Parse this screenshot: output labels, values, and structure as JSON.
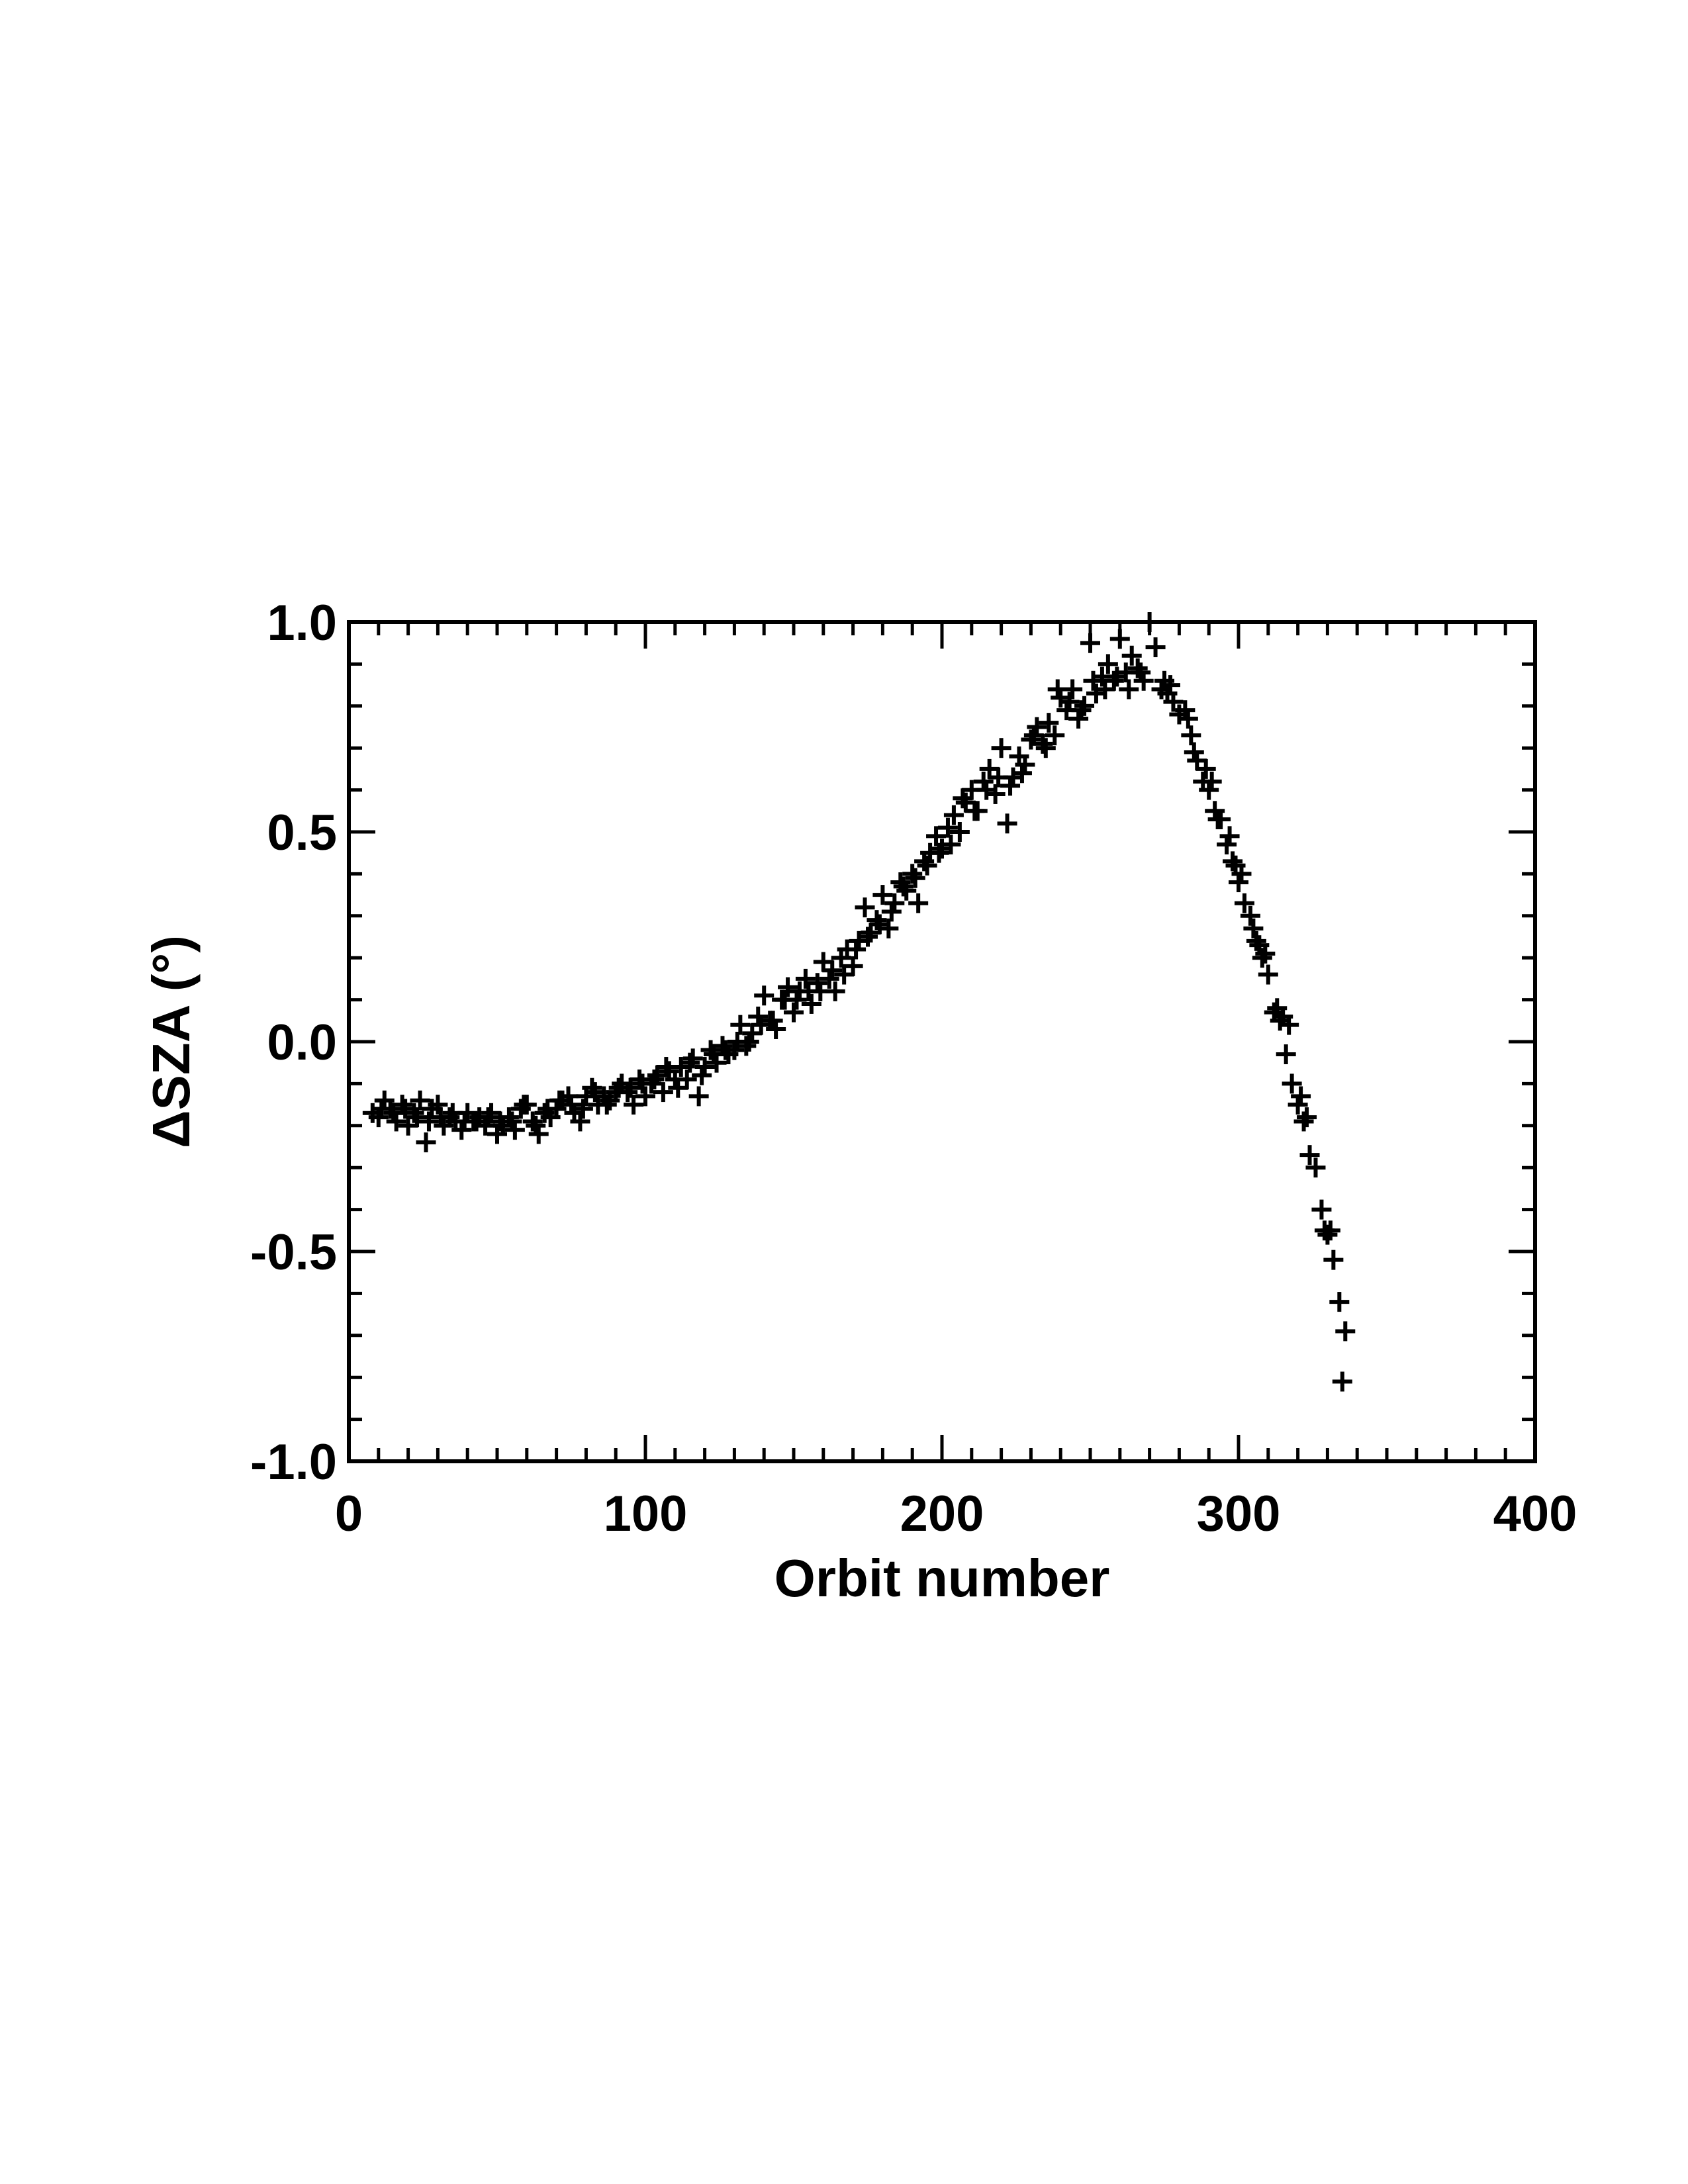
{
  "chart_data": {
    "type": "scatter",
    "marker": "plus",
    "color": "#000000",
    "xlabel": "Orbit number",
    "ylabel": "ΔSZA (°)",
    "xlim": [
      0,
      400
    ],
    "ylim": [
      -1.0,
      1.0
    ],
    "xticks": [
      0,
      100,
      200,
      300,
      400
    ],
    "xtick_labels": [
      "0",
      "100",
      "200",
      "300",
      "400"
    ],
    "xminor_step": 10,
    "yticks": [
      -1.0,
      -0.5,
      0.0,
      0.5,
      1.0
    ],
    "ytick_labels": [
      "-1.0",
      "-0.5",
      "0.0",
      "0.5",
      "1.0"
    ],
    "yminor_step": 0.1,
    "grid": false,
    "series": [
      {
        "points": [
          [
            8,
            -0.17
          ],
          [
            10,
            -0.18
          ],
          [
            12,
            -0.14
          ],
          [
            14,
            -0.16
          ],
          [
            16,
            -0.19
          ],
          [
            18,
            -0.15
          ],
          [
            20,
            -0.2
          ],
          [
            22,
            -0.17
          ],
          [
            24,
            -0.14
          ],
          [
            26,
            -0.24
          ],
          [
            28,
            -0.16
          ],
          [
            30,
            -0.15
          ],
          [
            32,
            -0.2
          ],
          [
            34,
            -0.18
          ],
          [
            36,
            -0.19
          ],
          [
            38,
            -0.21
          ],
          [
            40,
            -0.17
          ],
          [
            42,
            -0.19
          ],
          [
            44,
            -0.18
          ],
          [
            46,
            -0.2
          ],
          [
            48,
            -0.17
          ],
          [
            50,
            -0.22
          ],
          [
            52,
            -0.2
          ],
          [
            54,
            -0.18
          ],
          [
            56,
            -0.21
          ],
          [
            58,
            -0.16
          ],
          [
            60,
            -0.15
          ],
          [
            62,
            -0.19
          ],
          [
            64,
            -0.22
          ],
          [
            66,
            -0.17
          ],
          [
            68,
            -0.18
          ],
          [
            70,
            -0.16
          ],
          [
            72,
            -0.14
          ],
          [
            74,
            -0.13
          ],
          [
            76,
            -0.17
          ],
          [
            78,
            -0.19
          ],
          [
            80,
            -0.13
          ],
          [
            82,
            -0.11
          ],
          [
            84,
            -0.15
          ],
          [
            86,
            -0.13
          ],
          [
            88,
            -0.14
          ],
          [
            90,
            -0.12
          ],
          [
            92,
            -0.1
          ],
          [
            94,
            -0.12
          ],
          [
            96,
            -0.15
          ],
          [
            98,
            -0.09
          ],
          [
            100,
            -0.13
          ],
          [
            102,
            -0.1
          ],
          [
            104,
            -0.08
          ],
          [
            106,
            -0.12
          ],
          [
            108,
            -0.07
          ],
          [
            110,
            -0.09
          ],
          [
            112,
            -0.06
          ],
          [
            114,
            -0.09
          ],
          [
            116,
            -0.04
          ],
          [
            118,
            -0.13
          ],
          [
            120,
            -0.06
          ],
          [
            122,
            -0.02
          ],
          [
            124,
            -0.05
          ],
          [
            126,
            -0.01
          ],
          [
            128,
            -0.03
          ],
          [
            130,
            -0.02
          ],
          [
            132,
            0.04
          ],
          [
            134,
            -0.01
          ],
          [
            136,
            0.02
          ],
          [
            138,
            0.06
          ],
          [
            140,
            0.11
          ],
          [
            142,
            0.05
          ],
          [
            144,
            0.03
          ],
          [
            146,
            0.1
          ],
          [
            148,
            0.13
          ],
          [
            150,
            0.07
          ],
          [
            152,
            0.12
          ],
          [
            154,
            0.15
          ],
          [
            156,
            0.09
          ],
          [
            158,
            0.14
          ],
          [
            160,
            0.19
          ],
          [
            162,
            0.15
          ],
          [
            164,
            0.12
          ],
          [
            166,
            0.2
          ],
          [
            168,
            0.22
          ],
          [
            170,
            0.18
          ],
          [
            172,
            0.24
          ],
          [
            174,
            0.32
          ],
          [
            176,
            0.26
          ],
          [
            178,
            0.29
          ],
          [
            180,
            0.35
          ],
          [
            182,
            0.27
          ],
          [
            184,
            0.33
          ],
          [
            186,
            0.38
          ],
          [
            188,
            0.36
          ],
          [
            190,
            0.4
          ],
          [
            192,
            0.33
          ],
          [
            194,
            0.43
          ],
          [
            196,
            0.45
          ],
          [
            198,
            0.49
          ],
          [
            200,
            0.46
          ],
          [
            202,
            0.51
          ],
          [
            204,
            0.54
          ],
          [
            206,
            0.5
          ],
          [
            208,
            0.57
          ],
          [
            210,
            0.6
          ],
          [
            212,
            0.55
          ],
          [
            214,
            0.62
          ],
          [
            216,
            0.65
          ],
          [
            218,
            0.59
          ],
          [
            220,
            0.7
          ],
          [
            222,
            0.52
          ],
          [
            224,
            0.63
          ],
          [
            226,
            0.68
          ],
          [
            228,
            0.66
          ],
          [
            230,
            0.72
          ],
          [
            232,
            0.75
          ],
          [
            234,
            0.71
          ],
          [
            236,
            0.76
          ],
          [
            238,
            0.73
          ],
          [
            240,
            0.82
          ],
          [
            242,
            0.79
          ],
          [
            244,
            0.84
          ],
          [
            246,
            0.77
          ],
          [
            248,
            0.8
          ],
          [
            250,
            0.95
          ],
          [
            252,
            0.83
          ],
          [
            254,
            0.87
          ],
          [
            256,
            0.9
          ],
          [
            258,
            0.86
          ],
          [
            260,
            0.96
          ],
          [
            262,
            0.88
          ],
          [
            264,
            0.92
          ],
          [
            266,
            0.89
          ],
          [
            268,
            0.86
          ],
          [
            270,
            1.0
          ],
          [
            272,
            0.94
          ],
          [
            274,
            0.84
          ],
          [
            276,
            0.83
          ],
          [
            278,
            0.81
          ],
          [
            280,
            0.78
          ],
          [
            282,
            0.79
          ],
          [
            284,
            0.73
          ],
          [
            286,
            0.67
          ],
          [
            288,
            0.62
          ],
          [
            290,
            0.6
          ],
          [
            292,
            0.55
          ],
          [
            294,
            0.53
          ],
          [
            296,
            0.47
          ],
          [
            298,
            0.43
          ],
          [
            300,
            0.38
          ],
          [
            302,
            0.33
          ],
          [
            304,
            0.3
          ],
          [
            306,
            0.24
          ],
          [
            308,
            0.2
          ],
          [
            310,
            0.16
          ],
          [
            312,
            0.07
          ],
          [
            314,
            0.05
          ],
          [
            316,
            -0.03
          ],
          [
            318,
            -0.1
          ],
          [
            320,
            -0.15
          ],
          [
            322,
            -0.19
          ],
          [
            324,
            -0.27
          ],
          [
            326,
            -0.3
          ],
          [
            328,
            -0.4
          ],
          [
            330,
            -0.46
          ],
          [
            332,
            -0.52
          ],
          [
            334,
            -0.62
          ],
          [
            336,
            -0.69
          ],
          [
            335,
            -0.81
          ],
          [
            317,
            0.04
          ],
          [
            309,
            0.21
          ],
          [
            301,
            0.4
          ],
          [
            293,
            0.53
          ],
          [
            285,
            0.69
          ],
          [
            277,
            0.85
          ],
          [
            263,
            0.84
          ],
          [
            255,
            0.84
          ],
          [
            247,
            0.79
          ],
          [
            239,
            0.84
          ],
          [
            231,
            0.73
          ],
          [
            223,
            0.61
          ],
          [
            215,
            0.6
          ],
          [
            207,
            0.58
          ],
          [
            199,
            0.45
          ],
          [
            191,
            0.39
          ],
          [
            183,
            0.31
          ],
          [
            175,
            0.25
          ],
          [
            167,
            0.16
          ],
          [
            159,
            0.12
          ],
          [
            151,
            0.1
          ],
          [
            143,
            0.05
          ],
          [
            135,
            0.0
          ],
          [
            127,
            -0.02
          ],
          [
            119,
            -0.08
          ],
          [
            111,
            -0.11
          ],
          [
            103,
            -0.09
          ],
          [
            95,
            -0.11
          ],
          [
            87,
            -0.15
          ],
          [
            79,
            -0.16
          ],
          [
            71,
            -0.14
          ],
          [
            63,
            -0.2
          ],
          [
            55,
            -0.19
          ],
          [
            47,
            -0.18
          ],
          [
            39,
            -0.19
          ],
          [
            31,
            -0.18
          ],
          [
            23,
            -0.18
          ],
          [
            15,
            -0.17
          ],
          [
            11,
            -0.16
          ],
          [
            19,
            -0.16
          ],
          [
            27,
            -0.19
          ],
          [
            35,
            -0.17
          ],
          [
            43,
            -0.19
          ],
          [
            51,
            -0.19
          ],
          [
            59,
            -0.15
          ],
          [
            67,
            -0.16
          ],
          [
            75,
            -0.15
          ],
          [
            83,
            -0.12
          ],
          [
            91,
            -0.11
          ],
          [
            99,
            -0.1
          ],
          [
            107,
            -0.06
          ],
          [
            115,
            -0.05
          ],
          [
            123,
            -0.03
          ],
          [
            131,
            0.0
          ],
          [
            139,
            0.04
          ],
          [
            147,
            0.1
          ],
          [
            155,
            0.12
          ],
          [
            163,
            0.17
          ],
          [
            171,
            0.22
          ],
          [
            179,
            0.28
          ],
          [
            187,
            0.37
          ],
          [
            195,
            0.42
          ],
          [
            203,
            0.47
          ],
          [
            211,
            0.55
          ],
          [
            219,
            0.63
          ],
          [
            227,
            0.64
          ],
          [
            235,
            0.7
          ],
          [
            243,
            0.81
          ],
          [
            251,
            0.86
          ],
          [
            259,
            0.87
          ],
          [
            267,
            0.88
          ],
          [
            275,
            0.86
          ],
          [
            283,
            0.77
          ],
          [
            291,
            0.62
          ],
          [
            299,
            0.42
          ],
          [
            307,
            0.23
          ],
          [
            315,
            0.06
          ],
          [
            323,
            -0.18
          ],
          [
            331,
            -0.45
          ],
          [
            329,
            -0.45
          ],
          [
            321,
            -0.13
          ],
          [
            313,
            0.08
          ],
          [
            305,
            0.27
          ],
          [
            297,
            0.49
          ],
          [
            289,
            0.65
          ]
        ]
      }
    ]
  }
}
